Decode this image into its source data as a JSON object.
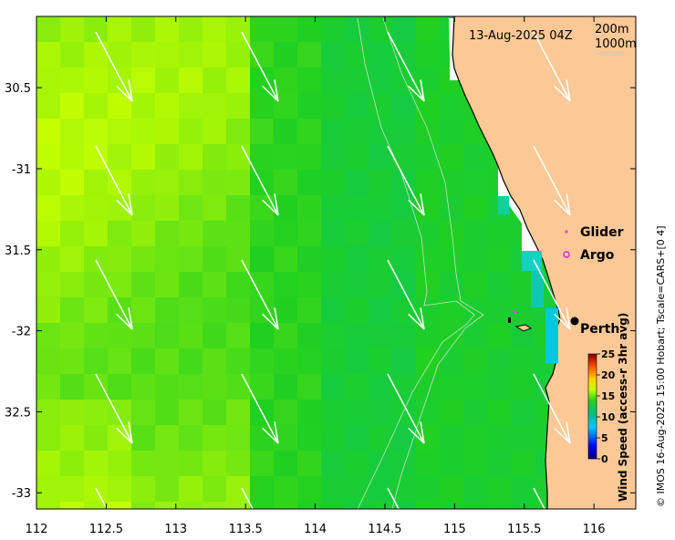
{
  "map": {
    "timestamp": "13-Aug-2025 04Z",
    "isobath_labels": [
      "200m",
      "1000m"
    ],
    "place_label": "Perth",
    "legend": {
      "glider": "Glider",
      "argo": "Argo",
      "glider_color": "#e040e0",
      "argo_color": "#e020e0"
    },
    "x_ticks": [
      {
        "value": 112,
        "label": "112"
      },
      {
        "value": 112.5,
        "label": "112.5"
      },
      {
        "value": 113,
        "label": "113"
      },
      {
        "value": 113.5,
        "label": "113.5"
      },
      {
        "value": 114,
        "label": "114"
      },
      {
        "value": 114.5,
        "label": "114.5"
      },
      {
        "value": 115,
        "label": "115"
      },
      {
        "value": 115.5,
        "label": "115.5"
      },
      {
        "value": 116,
        "label": "116"
      }
    ],
    "y_ticks": [
      {
        "value": -30.5,
        "label": "30.5"
      },
      {
        "value": -31,
        "label": "-31"
      },
      {
        "value": -31.5,
        "label": "31.5"
      },
      {
        "value": -32,
        "label": "-32"
      },
      {
        "value": -32.5,
        "label": "32.5"
      },
      {
        "value": -33,
        "label": "-33"
      }
    ],
    "colorbar": {
      "title": "Wind Speed (access-r 3hr avg)",
      "ticks": [
        "0",
        "5",
        "10",
        "15",
        "20",
        "25"
      ],
      "range": [
        0,
        25
      ]
    },
    "credit": "© IMOS 16-Aug-2025 15:00 Hobart; Tscale=CARS+[0 4]",
    "colors": {
      "land": "#fcc896",
      "arrow": "#ffffff",
      "contour": "#c8e0c8"
    }
  }
}
